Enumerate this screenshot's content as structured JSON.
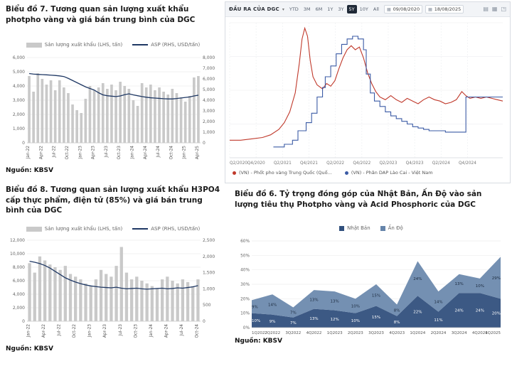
{
  "chart_data": [
    {
      "id": "chart7",
      "type": "bar+line",
      "title": "Biểu đồ 7. Tương quan sản lượng xuất khẩu photpho vàng và giá bán trung bình của DGC",
      "legend": {
        "bar": "Sản lượng xuất khẩu (LHS, tấn)",
        "line": "ASP (RHS, USD/tấn)"
      },
      "source": "Nguồn: KBSV",
      "bar_color": "#c9c9c9",
      "line_color": "#1f3864",
      "x_tick_every": 3,
      "left_axis": {
        "min": 0,
        "max": 6000,
        "step": 1000
      },
      "right_axis": {
        "min": 0,
        "max": 8000,
        "step": 1000
      },
      "x": [
        "Jan-22",
        "Feb-22",
        "Mar-22",
        "Apr-22",
        "May-22",
        "Jun-22",
        "Jul-22",
        "Aug-22",
        "Sep-22",
        "Oct-22",
        "Nov-22",
        "Dec-22",
        "Jan-23",
        "Feb-23",
        "Mar-23",
        "Apr-23",
        "May-23",
        "Jun-23",
        "Jul-23",
        "Aug-23",
        "Sep-23",
        "Oct-23",
        "Nov-23",
        "Dec-23",
        "Jan-24",
        "Feb-24",
        "Mar-24",
        "Apr-24",
        "May-24",
        "Jun-24",
        "Jul-24",
        "Aug-24",
        "Sep-24",
        "Oct-24",
        "Nov-24",
        "Dec-24",
        "Jan-25",
        "Feb-25",
        "Mar-25",
        "Apr-25"
      ],
      "series": [
        {
          "name": "Sản lượng xuất khẩu (LHS, tấn)",
          "type": "bar",
          "axis": "left",
          "values": [
            4700,
            3600,
            4900,
            4500,
            4100,
            4400,
            3700,
            4400,
            3900,
            3500,
            2700,
            2300,
            2100,
            3100,
            4000,
            3700,
            3900,
            4200,
            3800,
            4100,
            3700,
            4300,
            4000,
            3800,
            3000,
            2600,
            4200,
            3900,
            4100,
            3700,
            3900,
            3600,
            3400,
            3800,
            3500,
            3200,
            2900,
            3300,
            4600,
            4700
          ]
        },
        {
          "name": "ASP (RHS, USD/tấn)",
          "type": "line",
          "axis": "right",
          "values": [
            6500,
            6450,
            6420,
            6400,
            6380,
            6350,
            6320,
            6280,
            6220,
            6050,
            5850,
            5650,
            5450,
            5250,
            5100,
            4950,
            4700,
            4500,
            4420,
            4380,
            4340,
            4400,
            4520,
            4600,
            4500,
            4420,
            4340,
            4280,
            4230,
            4200,
            4170,
            4140,
            4120,
            4120,
            4160,
            4210,
            4260,
            4310,
            4400,
            4470
          ]
        }
      ]
    },
    {
      "id": "dgc-output",
      "type": "line",
      "title": "ĐẦU RA CỦA DGC",
      "caret_glyph": "▾",
      "calendar_glyph": "▦",
      "range_buttons": [
        "YTD",
        "3M",
        "6M",
        "1Y",
        "3Y",
        "5Y",
        "10Y",
        "All"
      ],
      "active_range": "5Y",
      "date_from": "09/08/2020",
      "date_to": "18/08/2025",
      "icons": [
        {
          "name": "chart-type-icon",
          "glyph": "▤"
        },
        {
          "name": "compare-icon",
          "glyph": "▦"
        },
        {
          "name": "fullscreen-icon",
          "glyph": "◳"
        }
      ],
      "legend": [
        {
          "label": "(VN) - Phốt pho vàng Trung Quốc (Quố...",
          "color": "#c0392b"
        },
        {
          "label": "(VN) - Phân DAP Lào Cai - Việt Nam",
          "color": "#3b5ba5"
        }
      ],
      "x_span_months": 62,
      "x_labels": [
        "Q2/2020",
        "Q4/2020",
        "Q2/2021",
        "Q4/2021",
        "Q2/2022",
        "Q4/2022",
        "Q2/2023",
        "Q4/2023",
        "Q2/2024",
        "Q4/2024"
      ],
      "y_scale": "relative 0-100 (axis labels not visible)",
      "series": [
        {
          "name": "(VN) - Phốt pho vàng Trung Quốc",
          "color": "#c0392b",
          "points": [
            [
              0,
              13
            ],
            [
              4,
              13
            ],
            [
              8,
              14
            ],
            [
              12,
              15
            ],
            [
              15,
              17
            ],
            [
              18,
              21
            ],
            [
              20,
              26
            ],
            [
              22,
              34
            ],
            [
              24,
              48
            ],
            [
              25.5,
              70
            ],
            [
              26.5,
              88
            ],
            [
              27.5,
              96
            ],
            [
              28.5,
              90
            ],
            [
              29.5,
              72
            ],
            [
              30.5,
              60
            ],
            [
              32,
              54
            ],
            [
              34,
              51
            ],
            [
              35.5,
              55
            ],
            [
              37,
              53
            ],
            [
              38.5,
              57
            ],
            [
              40,
              66
            ],
            [
              41.5,
              74
            ],
            [
              43,
              80
            ],
            [
              44.5,
              83
            ],
            [
              46,
              80
            ],
            [
              47.5,
              82
            ],
            [
              49,
              74
            ],
            [
              50.5,
              63
            ],
            [
              52,
              55
            ],
            [
              53.5,
              49
            ],
            [
              55,
              45
            ],
            [
              57,
              43
            ],
            [
              59,
              46
            ],
            [
              61,
              43
            ],
            [
              63,
              41
            ],
            [
              65,
              44
            ],
            [
              67,
              42
            ],
            [
              69,
              40
            ],
            [
              71,
              43
            ],
            [
              73,
              45
            ],
            [
              75,
              43
            ],
            [
              77,
              42
            ],
            [
              79,
              40
            ],
            [
              81,
              41
            ],
            [
              83,
              43
            ],
            [
              85,
              49
            ],
            [
              86.5,
              46
            ],
            [
              88,
              44
            ],
            [
              90,
              45
            ],
            [
              92,
              44
            ],
            [
              94,
              45
            ],
            [
              96,
              44
            ],
            [
              98,
              43
            ],
            [
              100,
              42
            ]
          ]
        },
        {
          "name": "(VN) - Phân DAP Lào Cai - Việt Nam",
          "color": "#3b5ba5",
          "step": true,
          "points": [
            [
              16,
              8
            ],
            [
              20,
              10
            ],
            [
              23,
              13
            ],
            [
              25,
              20
            ],
            [
              27,
              20
            ],
            [
              28,
              26
            ],
            [
              30,
              33
            ],
            [
              32,
              45
            ],
            [
              34,
              52
            ],
            [
              35,
              60
            ],
            [
              37,
              68
            ],
            [
              39,
              77
            ],
            [
              41,
              84
            ],
            [
              43,
              88
            ],
            [
              45,
              90
            ],
            [
              47,
              88
            ],
            [
              49,
              80
            ],
            [
              50,
              62
            ],
            [
              51.5,
              48
            ],
            [
              53,
              42
            ],
            [
              55,
              38
            ],
            [
              57,
              34
            ],
            [
              59,
              31
            ],
            [
              61,
              29
            ],
            [
              63,
              27
            ],
            [
              65,
              25
            ],
            [
              67,
              23
            ],
            [
              69,
              22
            ],
            [
              71,
              21
            ],
            [
              73,
              20
            ],
            [
              76,
              20
            ],
            [
              79,
              19
            ],
            [
              82,
              19
            ],
            [
              85,
              19
            ],
            [
              86.5,
              45
            ],
            [
              90,
              45
            ],
            [
              94,
              45
            ],
            [
              100,
              45
            ]
          ]
        }
      ]
    },
    {
      "id": "chart8",
      "type": "bar+line",
      "title": "Biểu đồ 8. Tương quan sản lượng xuất khẩu H3PO4 cấp thực phẩm, điện tử (85%) và giá bán trung bình của DGC",
      "legend": {
        "bar": "Sản lượng xuất khẩu (LHS, tấn)",
        "line": "ASP (RHS, USD/tấn)"
      },
      "source": "Nguồn: KBSV",
      "bar_color": "#c9c9c9",
      "line_color": "#1f3864",
      "x_tick_every": 3,
      "left_axis": {
        "min": 0,
        "max": 12000,
        "step": 2000
      },
      "right_axis": {
        "min": 0,
        "max": 2500,
        "step": 500
      },
      "x": [
        "Jan-22",
        "Feb-22",
        "Mar-22",
        "Apr-22",
        "May-22",
        "Jun-22",
        "Jul-22",
        "Aug-22",
        "Sep-22",
        "Oct-22",
        "Nov-22",
        "Dec-22",
        "Jan-23",
        "Feb-23",
        "Mar-23",
        "Apr-23",
        "May-23",
        "Jun-23",
        "Jul-23",
        "Aug-23",
        "Sep-23",
        "Oct-23",
        "Nov-23",
        "Dec-23",
        "Jan-24",
        "Feb-24",
        "Mar-24",
        "Apr-24",
        "May-24",
        "Jun-24",
        "Jul-24",
        "Aug-24",
        "Sep-24",
        "Oct-24"
      ],
      "series": [
        {
          "name": "Sản lượng xuất khẩu (LHS, tấn)",
          "type": "bar",
          "axis": "left",
          "values": [
            8600,
            7200,
            9600,
            9000,
            8400,
            8000,
            7600,
            8200,
            7000,
            6600,
            6200,
            5600,
            5200,
            6200,
            7600,
            7000,
            6600,
            8200,
            11000,
            7200,
            6200,
            6600,
            6000,
            5600,
            5200,
            4800,
            6200,
            6600,
            6000,
            5600,
            6200,
            5800,
            5200,
            6200
          ]
        },
        {
          "name": "ASP (RHS, USD/tấn)",
          "type": "line",
          "axis": "right",
          "values": [
            1850,
            1820,
            1780,
            1720,
            1640,
            1540,
            1440,
            1340,
            1270,
            1210,
            1160,
            1120,
            1090,
            1070,
            1050,
            1040,
            1030,
            1050,
            1020,
            1000,
            1010,
            1020,
            1000,
            990,
            1000,
            1010,
            1020,
            1000,
            1010,
            1030,
            1020,
            1040,
            1060,
            1100
          ]
        }
      ]
    },
    {
      "id": "chart6",
      "type": "area",
      "stacked": true,
      "title": "Biểu đồ 6. Tỷ trọng đóng góp của Nhật Bản, Ấn Độ vào sản lượng tiêu thụ Photpho vàng và Acid Phosphoric của DGC",
      "source": "Nguồn: KBSV",
      "y_axis": {
        "min": 0,
        "max": 60,
        "step": 10,
        "unit": "%"
      },
      "categories": [
        "1Q2022",
        "2Q2022",
        "3Q2022",
        "4Q2022",
        "1Q2023",
        "2Q2023",
        "3Q2023",
        "4Q2023",
        "1Q2024",
        "2Q2024",
        "3Q2024",
        "4Q2024",
        "1Q2025"
      ],
      "series": [
        {
          "name": "Nhật Bản",
          "color": "#31507d",
          "values": [
            10,
            9,
            7,
            13,
            12,
            10,
            15,
            8,
            22,
            11,
            24,
            24,
            20
          ]
        },
        {
          "name": "Ấn Độ",
          "color": "#6584aa",
          "values": [
            9,
            14,
            7,
            13,
            13,
            10,
            15,
            8,
            24,
            14,
            13,
            10,
            29
          ]
        }
      ]
    }
  ]
}
